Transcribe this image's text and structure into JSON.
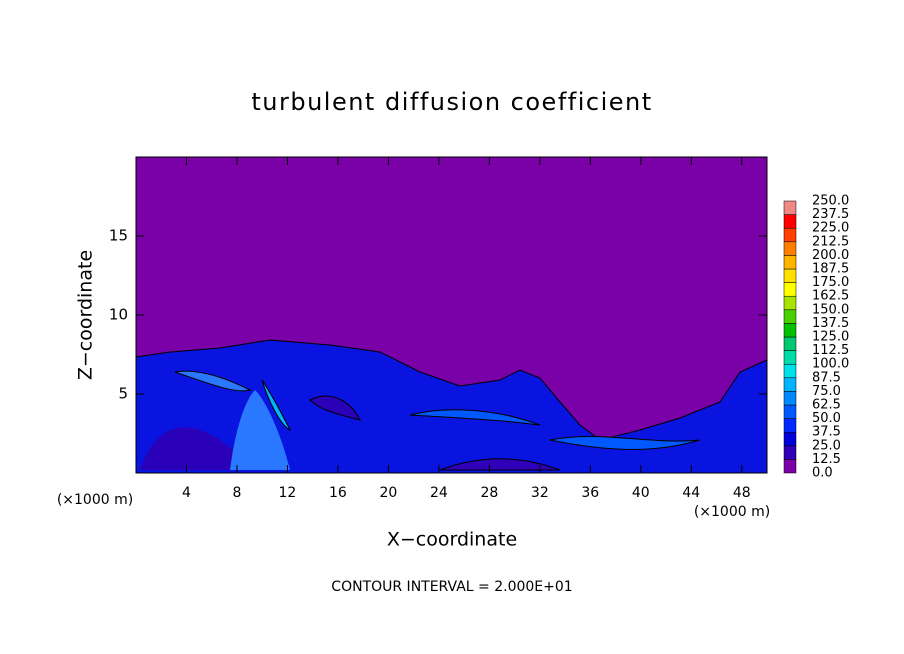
{
  "chart_data": {
    "type": "contour",
    "title": "turbulent diffusion coefficient",
    "x_label": "X−coordinate",
    "y_label": "Z−coordinate",
    "x_unit_label": "(×1000 m)",
    "y_unit_label": "(×1000 m)",
    "footer": "CONTOUR INTERVAL = 2.000E+01",
    "xlim": [
      0,
      50
    ],
    "ylim": [
      0,
      20
    ],
    "xticks": [
      4,
      8,
      12,
      16,
      20,
      24,
      28,
      32,
      36,
      40,
      44,
      48
    ],
    "yticks": [
      5,
      10,
      15
    ],
    "colorbar": {
      "levels": [
        {
          "value": 0,
          "label": "0.0"
        },
        {
          "value": 12.5,
          "label": "12.5"
        },
        {
          "value": 25,
          "label": "25.0"
        },
        {
          "value": 37.5,
          "label": "37.5"
        },
        {
          "value": 50,
          "label": "50.0"
        },
        {
          "value": 62.5,
          "label": "62.5"
        },
        {
          "value": 75,
          "label": "75.0"
        },
        {
          "value": 87.5,
          "label": "87.5"
        },
        {
          "value": 100,
          "label": "100.0"
        },
        {
          "value": 112.5,
          "label": "112.5"
        },
        {
          "value": 125,
          "label": "125.0"
        },
        {
          "value": 137.5,
          "label": "137.5"
        },
        {
          "value": 150,
          "label": "150.0"
        },
        {
          "value": 162.5,
          "label": "162.5"
        },
        {
          "value": 175,
          "label": "175.0"
        },
        {
          "value": 187.5,
          "label": "187.5"
        },
        {
          "value": 200,
          "label": "200.0"
        },
        {
          "value": 212.5,
          "label": "212.5"
        },
        {
          "value": 225,
          "label": "225.0"
        },
        {
          "value": 237.5,
          "label": "237.5"
        },
        {
          "value": 250,
          "label": "250.0"
        }
      ],
      "colors": [
        "#7a00a8",
        "#3000b8",
        "#0000d8",
        "#0028ff",
        "#0058ff",
        "#0088ff",
        "#00b4ff",
        "#00e0e8",
        "#00dca8",
        "#00c870",
        "#00c000",
        "#48d000",
        "#a8e400",
        "#ffff00",
        "#ffe000",
        "#ffb400",
        "#ff8000",
        "#ff4000",
        "#ff0000",
        "#f08888"
      ]
    }
  }
}
